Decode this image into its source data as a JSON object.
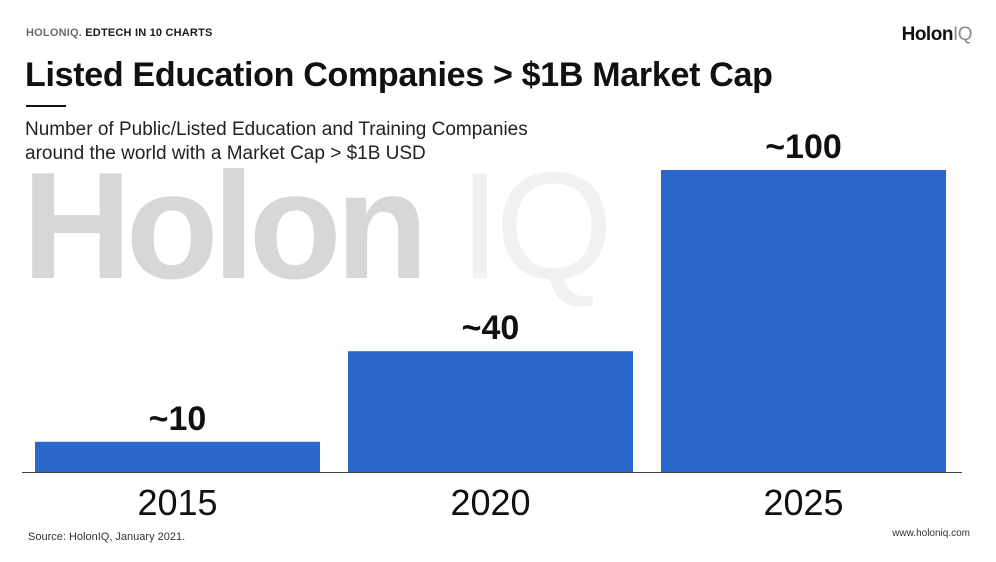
{
  "header": {
    "kicker_brand": "HOLONIQ.",
    "kicker_text": "EDTECH IN 10 CHARTS",
    "logo_main": "Holon",
    "logo_iq": "IQ"
  },
  "watermark": {
    "main": "Holon",
    "iq": "IQ"
  },
  "footer": {
    "source": "Source: HolonIQ, January 2021.",
    "url": "www.holoniq.com"
  },
  "colors": {
    "bar": "#2b66cc",
    "axis": "#444444"
  },
  "chart_data": {
    "type": "bar",
    "title": "Listed Education Companies > $1B Market Cap",
    "subtitle_lines": [
      "Number of Public/Listed Education and Training Companies",
      "around the world with a Market Cap > $1B USD"
    ],
    "categories": [
      "2015",
      "2020",
      "2025"
    ],
    "values": [
      10,
      40,
      100
    ],
    "data_labels": [
      "~10",
      "~40",
      "~100"
    ],
    "xlabel": "",
    "ylabel": "",
    "ylim": [
      0,
      100
    ],
    "grid": false,
    "legend": "none"
  }
}
